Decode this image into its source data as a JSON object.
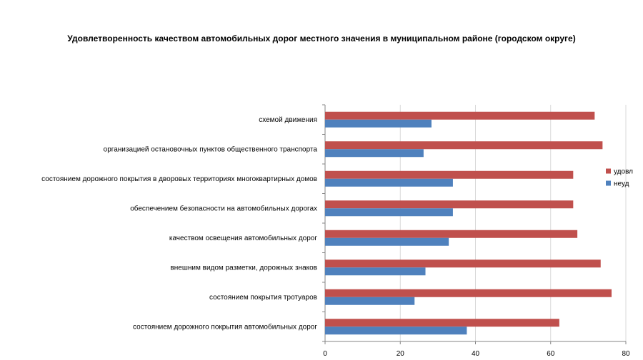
{
  "chart_data": {
    "type": "bar",
    "orientation": "horizontal",
    "title": "Удовлетворенность качеством автомобильных дорог местного значения в муниципальном районе (городском округе)",
    "categories": [
      "схемой движения",
      "организацией остановочных пунктов общественного транспорта",
      "состоянием дорожного покрытия в дворовых территориях многоквартирных домов",
      "обеспечением безопасности на автомобильных дорогах",
      "качеством освещения автомобильных дорог",
      "внешним видом разметки, дорожных знаков",
      "состоянием покрытия тротуаров",
      "состоянием дорожного покрытия автомобильных дорог"
    ],
    "series": [
      {
        "name": "удовл",
        "color": "#c0504d",
        "values": [
          71.7,
          73.8,
          66.0,
          66.0,
          67.1,
          73.3,
          76.2,
          62.3
        ]
      },
      {
        "name": "неуд",
        "color": "#4f81bd",
        "values": [
          28.3,
          26.2,
          34.0,
          34.0,
          32.9,
          26.7,
          23.8,
          37.7
        ]
      }
    ],
    "xlim": [
      0,
      80
    ],
    "xticks": [
      0,
      20,
      40,
      60,
      80
    ],
    "grid": true,
    "legend_position": "right"
  }
}
